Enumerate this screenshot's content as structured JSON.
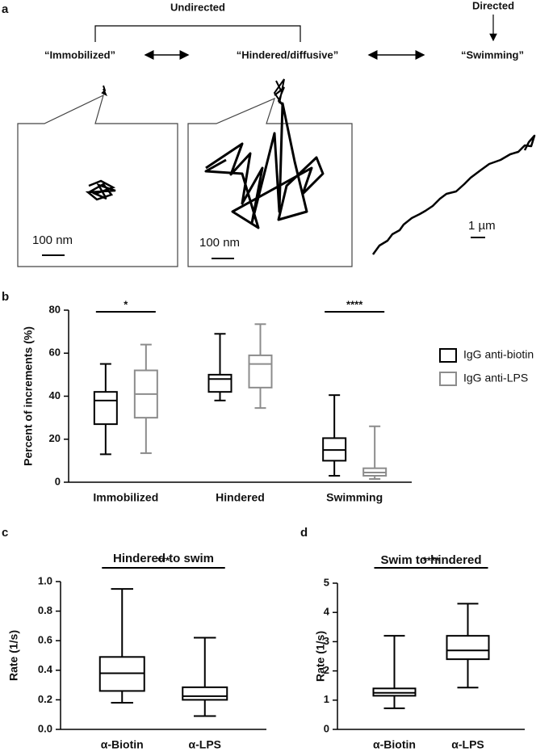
{
  "panel_labels": [
    "a",
    "b",
    "c",
    "d"
  ],
  "diagram": {
    "undirected": "Undirected",
    "directed": "Directed",
    "states": [
      "“Immobilized”",
      "“Hindered/diffusive”",
      "“Swimming”"
    ],
    "scale_bars": [
      "100 nm",
      "100 nm",
      "1 µm"
    ]
  },
  "chart_data": [
    {
      "type": "box",
      "y_label": "Percent of increments (%)",
      "categories": [
        "Immobilized",
        "Hindered",
        "Swimming"
      ],
      "annotations": [
        "*",
        null,
        "****"
      ],
      "ylim": [
        0,
        80
      ],
      "yticks": [
        0,
        20,
        40,
        60,
        80
      ],
      "legend": "right",
      "series": [
        {
          "name": "IgG anti-biotin",
          "color": "#000000",
          "min": [
            13,
            38,
            3
          ],
          "q1": [
            27,
            42,
            10
          ],
          "median": [
            38,
            48,
            15
          ],
          "q3": [
            42,
            50,
            20.5
          ],
          "max": [
            55,
            69,
            40.5
          ]
        },
        {
          "name": "IgG anti-LPS",
          "color": "#8c8c8c",
          "min": [
            13.5,
            34.5,
            1.5
          ],
          "q1": [
            30,
            44,
            3
          ],
          "median": [
            41,
            55,
            4.5
          ],
          "q3": [
            52,
            59,
            6.5
          ],
          "max": [
            64,
            73.5,
            26
          ]
        }
      ]
    },
    {
      "type": "box",
      "title": "Hindered to swim",
      "y_label": "Rate (1/s)",
      "categories": [
        "α-Biotin",
        "α-LPS"
      ],
      "annotation": "***",
      "ylim": [
        0,
        1
      ],
      "yticks": [
        {
          "value": 0,
          "label": "0.0"
        },
        0.2,
        0.4,
        0.6,
        0.8,
        {
          "value": 1,
          "label": "1.0"
        }
      ],
      "series": [
        {
          "color": "#000000",
          "min": [
            0.18,
            0.09
          ],
          "q1": [
            0.26,
            0.2
          ],
          "median": [
            0.38,
            0.225
          ],
          "q3": [
            0.49,
            0.285
          ],
          "max": [
            0.95,
            0.62
          ]
        }
      ]
    },
    {
      "type": "box",
      "title": "Swim to hindered",
      "y_label": "Rate (1/s)",
      "categories": [
        "α-Biotin",
        "α-LPS"
      ],
      "annotation": "****",
      "ylim": [
        0,
        5
      ],
      "yticks": [
        0,
        1,
        2,
        3,
        4,
        5
      ],
      "series": [
        {
          "color": "#000000",
          "min": [
            0.72,
            1.43
          ],
          "q1": [
            1.15,
            2.4
          ],
          "median": [
            1.25,
            2.7
          ],
          "q3": [
            1.4,
            3.2
          ],
          "max": [
            3.2,
            4.3
          ]
        }
      ]
    }
  ]
}
